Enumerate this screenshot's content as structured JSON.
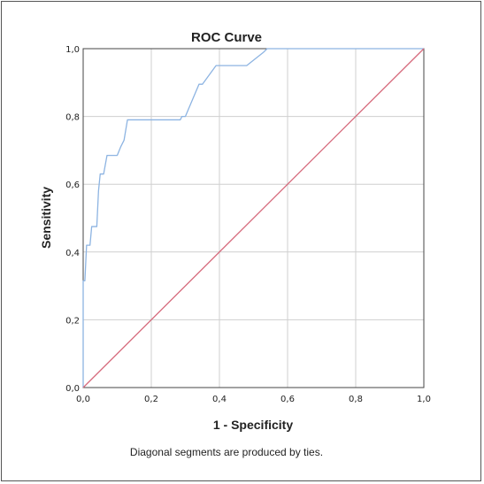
{
  "chart_data": {
    "type": "line",
    "title": "ROC Curve",
    "xlabel": "1 - Specificity",
    "ylabel": "Sensitivity",
    "xlim": [
      0,
      1
    ],
    "ylim": [
      0,
      1
    ],
    "x_ticks": [
      "0,0",
      "0,2",
      "0,4",
      "0,6",
      "0,8",
      "1,0"
    ],
    "y_ticks": [
      "0,0",
      "0,2",
      "0,4",
      "0,6",
      "0,8",
      "1,0"
    ],
    "grid": true,
    "footnote": "Diagonal segments are produced by ties.",
    "series": [
      {
        "color": "#8db4e2",
        "x": [
          0.0,
          0.0,
          0.0,
          0.005,
          0.01,
          0.01,
          0.02,
          0.025,
          0.03,
          0.04,
          0.045,
          0.05,
          0.055,
          0.06,
          0.07,
          0.08,
          0.09,
          0.1,
          0.11,
          0.12,
          0.13,
          0.135,
          0.14,
          0.145,
          0.28,
          0.285,
          0.29,
          0.3,
          0.34,
          0.35,
          0.39,
          0.4,
          0.47,
          0.48,
          0.53,
          0.54,
          0.55,
          0.6,
          0.7,
          0.8,
          0.9,
          1.0
        ],
        "y": [
          0.0,
          0.05,
          0.315,
          0.315,
          0.42,
          0.42,
          0.42,
          0.475,
          0.475,
          0.475,
          0.58,
          0.63,
          0.63,
          0.63,
          0.685,
          0.685,
          0.685,
          0.685,
          0.71,
          0.73,
          0.79,
          0.79,
          0.79,
          0.79,
          0.79,
          0.79,
          0.8,
          0.8,
          0.895,
          0.895,
          0.95,
          0.95,
          0.95,
          0.95,
          0.99,
          1.0,
          1.0,
          1.0,
          1.0,
          1.0,
          1.0,
          1.0
        ]
      },
      {
        "color": "#d66a7c",
        "x": [
          0,
          1
        ],
        "y": [
          0,
          1
        ]
      }
    ]
  }
}
